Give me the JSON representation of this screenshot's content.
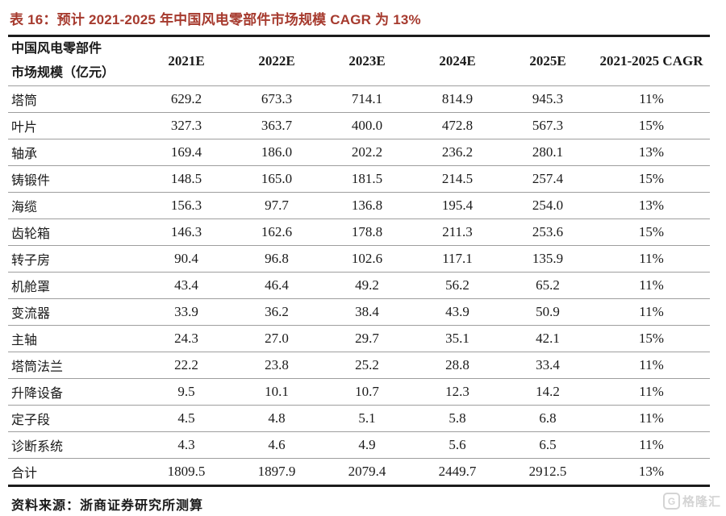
{
  "chart_data": {
    "type": "table",
    "title": "表 16：预计 2021-2025 年中国风电零部件市场规模 CAGR 为 13%",
    "row_header_lines": [
      "中国风电零部件",
      "市场规模（亿元）"
    ],
    "columns": [
      "2021E",
      "2022E",
      "2023E",
      "2024E",
      "2025E",
      "2021-2025 CAGR"
    ],
    "rows": [
      {
        "label": "塔筒",
        "values": [
          "629.2",
          "673.3",
          "714.1",
          "814.9",
          "945.3",
          "11%"
        ]
      },
      {
        "label": "叶片",
        "values": [
          "327.3",
          "363.7",
          "400.0",
          "472.8",
          "567.3",
          "15%"
        ]
      },
      {
        "label": "轴承",
        "values": [
          "169.4",
          "186.0",
          "202.2",
          "236.2",
          "280.1",
          "13%"
        ]
      },
      {
        "label": "铸锻件",
        "values": [
          "148.5",
          "165.0",
          "181.5",
          "214.5",
          "257.4",
          "15%"
        ]
      },
      {
        "label": "海缆",
        "values": [
          "156.3",
          "97.7",
          "136.8",
          "195.4",
          "254.0",
          "13%"
        ]
      },
      {
        "label": "齿轮箱",
        "values": [
          "146.3",
          "162.6",
          "178.8",
          "211.3",
          "253.6",
          "15%"
        ]
      },
      {
        "label": "转子房",
        "values": [
          "90.4",
          "96.8",
          "102.6",
          "117.1",
          "135.9",
          "11%"
        ]
      },
      {
        "label": "机舱罩",
        "values": [
          "43.4",
          "46.4",
          "49.2",
          "56.2",
          "65.2",
          "11%"
        ]
      },
      {
        "label": "变流器",
        "values": [
          "33.9",
          "36.2",
          "38.4",
          "43.9",
          "50.9",
          "11%"
        ]
      },
      {
        "label": "主轴",
        "values": [
          "24.3",
          "27.0",
          "29.7",
          "35.1",
          "42.1",
          "15%"
        ]
      },
      {
        "label": "塔筒法兰",
        "values": [
          "22.2",
          "23.8",
          "25.2",
          "28.8",
          "33.4",
          "11%"
        ]
      },
      {
        "label": "升降设备",
        "values": [
          "9.5",
          "10.1",
          "10.7",
          "12.3",
          "14.2",
          "11%"
        ]
      },
      {
        "label": "定子段",
        "values": [
          "4.5",
          "4.8",
          "5.1",
          "5.8",
          "6.8",
          "11%"
        ]
      },
      {
        "label": "诊断系统",
        "values": [
          "4.3",
          "4.6",
          "4.9",
          "5.6",
          "6.5",
          "11%"
        ]
      }
    ],
    "total": {
      "label": "合计",
      "values": [
        "1809.5",
        "1897.9",
        "2079.4",
        "2449.7",
        "2912.5",
        "13%"
      ]
    },
    "source": "资料来源：浙商证券研究所测算"
  },
  "watermark": {
    "logo_letter": "G",
    "text": "格隆汇"
  },
  "colors": {
    "title_red": "#a63a2e",
    "line_dark": "#1c1c1c",
    "line_light": "#9e9e9e",
    "text": "#1a1a1a",
    "watermark_gray": "#d4d4d4",
    "background": "#ffffff"
  }
}
